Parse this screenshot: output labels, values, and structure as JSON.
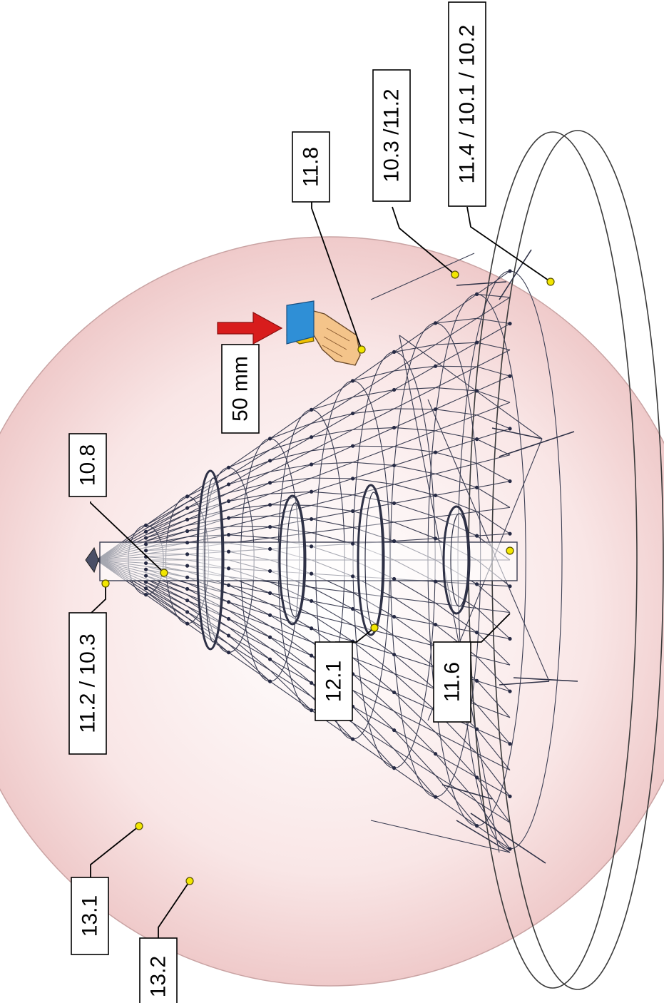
{
  "labels": {
    "l_10_8": "10.8",
    "l_11_2_10_3": "11.2 / 10.3",
    "l_12_1": "12.1",
    "l_11_6": "11.6",
    "l_13_1": "13.1",
    "l_13_2": "13.2",
    "l_11_8": "11.8",
    "l_10_3_11_2": "10.3 /11.2",
    "l_11_4_10_1_10_2": "11.4 / 10.1 / 10.2",
    "l_50mm": "50 mm"
  },
  "colors": {
    "sphere_fill": "#f7dede",
    "sphere_stroke": "#c9a3a3",
    "marker_dot": "#f2e600",
    "arrow": "#d81c1c",
    "cuff": "#2f8fd6",
    "hand": "#f4c48a",
    "frame": "#3a3d52"
  },
  "icons": {
    "arrow": "red-arrow-icon",
    "hand": "hand-icon"
  }
}
